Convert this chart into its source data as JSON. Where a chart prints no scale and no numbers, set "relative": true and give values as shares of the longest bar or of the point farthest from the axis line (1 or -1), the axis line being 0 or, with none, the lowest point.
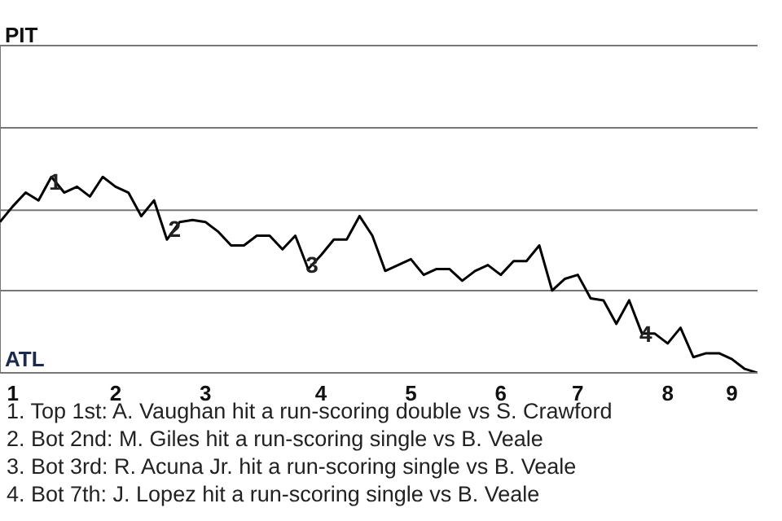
{
  "chart_data": {
    "type": "line",
    "relative": true,
    "categories": [
      null,
      "1",
      null,
      null,
      null,
      null,
      null,
      null,
      null,
      "2",
      null,
      null,
      null,
      null,
      null,
      null,
      "3",
      null,
      null,
      null,
      null,
      null,
      null,
      null,
      null,
      "4",
      null,
      null,
      null,
      null,
      null,
      null,
      "5",
      null,
      null,
      null,
      null,
      null,
      null,
      "6",
      null,
      null,
      null,
      null,
      null,
      "7",
      null,
      null,
      null,
      null,
      null,
      null,
      "8",
      null,
      null,
      null,
      null,
      "9",
      null,
      null
    ],
    "series": [
      {
        "color": "#000000",
        "values": [
          0.77,
          0.85,
          0.92,
          0.88,
          1,
          0.92,
          0.95,
          0.9,
          1,
          0.95,
          0.92,
          0.8,
          0.88,
          0.68,
          0.77,
          0.78,
          0.77,
          0.72,
          0.65,
          0.65,
          0.7,
          0.7,
          0.63,
          0.7,
          0.53,
          0.6,
          0.68,
          0.68,
          0.8,
          0.7,
          0.52,
          0.55,
          0.58,
          0.5,
          0.53,
          0.53,
          0.47,
          0.52,
          0.55,
          0.5,
          0.57,
          0.57,
          0.65,
          0.42,
          0.48,
          0.5,
          0.38,
          0.37,
          0.25,
          0.37,
          0.2,
          0.2,
          0.15,
          0.23,
          0.08,
          0.1,
          0.1,
          0.07,
          0.02,
          0
        ]
      }
    ],
    "ref_lines": [
      {
        "axis": "y",
        "value": 0.42,
        "color": "#777777"
      },
      {
        "axis": "y",
        "value": 0.83,
        "color": "#777777"
      },
      {
        "axis": "y",
        "value": 1.25,
        "color": "#777777"
      },
      {
        "axis": "y",
        "value": 1.67,
        "color": "#777777"
      }
    ],
    "line_style": "solid",
    "annotations": [
      "PIT",
      "ATL",
      "1",
      "2",
      "3",
      "4",
      "1. Top 1st: A. Vaughan hit a run-scoring double vs S. Crawford",
      "2. Bot 2nd: M. Giles hit a run-scoring single vs B. Veale",
      "3. Bot 3rd: R. Acuna Jr. hit a run-scoring single vs B. Veale",
      "4. Bot 7th: J. Lopez hit a run-scoring single vs B. Veale"
    ]
  }
}
